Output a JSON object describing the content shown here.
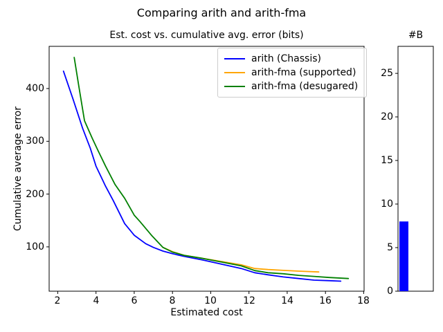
{
  "suptitle": "Comparing arith and arith-fma",
  "chart_data": {
    "main": {
      "type": "line",
      "title": "Est. cost vs. cumulative avg. error (bits)",
      "xlabel": "Estimated cost",
      "ylabel": "Cumulative average error",
      "xlim": [
        1.55,
        18.02
      ],
      "ylim": [
        16,
        480
      ],
      "xticks": [
        2,
        4,
        6,
        8,
        10,
        12,
        14,
        16,
        18
      ],
      "yticks": [
        100,
        200,
        300,
        400
      ],
      "grid": false,
      "legend_position": "upper right",
      "series": [
        {
          "name": "arith (Chassis)",
          "color": "#0000ff",
          "points": [
            [
              2.3,
              433
            ],
            [
              2.8,
              380
            ],
            [
              3.3,
              325
            ],
            [
              3.7,
              287
            ],
            [
              4.0,
              253
            ],
            [
              4.5,
              215
            ],
            [
              4.9,
              188
            ],
            [
              5.5,
              144
            ],
            [
              6.0,
              122
            ],
            [
              6.6,
              106
            ],
            [
              7.0,
              99
            ],
            [
              7.5,
              92
            ],
            [
              8.0,
              87
            ],
            [
              8.6,
              82
            ],
            [
              9.6,
              75
            ],
            [
              10.6,
              67
            ],
            [
              11.6,
              59
            ],
            [
              12.3,
              51
            ],
            [
              13.0,
              47
            ],
            [
              13.8,
              43
            ],
            [
              14.6,
              40
            ],
            [
              15.4,
              37
            ],
            [
              16.1,
              36
            ],
            [
              16.8,
              35
            ]
          ]
        },
        {
          "name": "arith-fma (supported)",
          "color": "#ffa500",
          "points": [
            [
              7.5,
              99
            ],
            [
              8.0,
              91
            ],
            [
              8.6,
              84
            ],
            [
              9.6,
              78
            ],
            [
              10.6,
              72
            ],
            [
              11.6,
              66
            ],
            [
              12.3,
              59
            ],
            [
              13.0,
              57
            ],
            [
              13.8,
              55.5
            ],
            [
              14.6,
              54
            ],
            [
              15.65,
              52.5
            ]
          ]
        },
        {
          "name": "arith-fma (desugared)",
          "color": "#008000",
          "points": [
            [
              2.86,
              459
            ],
            [
              3.1,
              405
            ],
            [
              3.4,
              339
            ],
            [
              3.8,
              306
            ],
            [
              4.1,
              283
            ],
            [
              4.5,
              253
            ],
            [
              5.0,
              218
            ],
            [
              5.5,
              192
            ],
            [
              6.0,
              160
            ],
            [
              6.3,
              148
            ],
            [
              6.9,
              122
            ],
            [
              7.5,
              99
            ],
            [
              8.0,
              90
            ],
            [
              8.6,
              84
            ],
            [
              9.6,
              78
            ],
            [
              10.6,
              71
            ],
            [
              11.6,
              64
            ],
            [
              12.3,
              55
            ],
            [
              13.0,
              51
            ],
            [
              13.8,
              49
            ],
            [
              14.6,
              46
            ],
            [
              15.4,
              44
            ],
            [
              16.2,
              42
            ],
            [
              17.2,
              40
            ]
          ]
        }
      ]
    },
    "bars": {
      "type": "bar",
      "title": "#B",
      "ylim": [
        0,
        28.1
      ],
      "yticks": [
        0,
        5,
        10,
        15,
        20,
        25
      ],
      "values": [
        8
      ],
      "bar_color": "#0000ff"
    }
  }
}
